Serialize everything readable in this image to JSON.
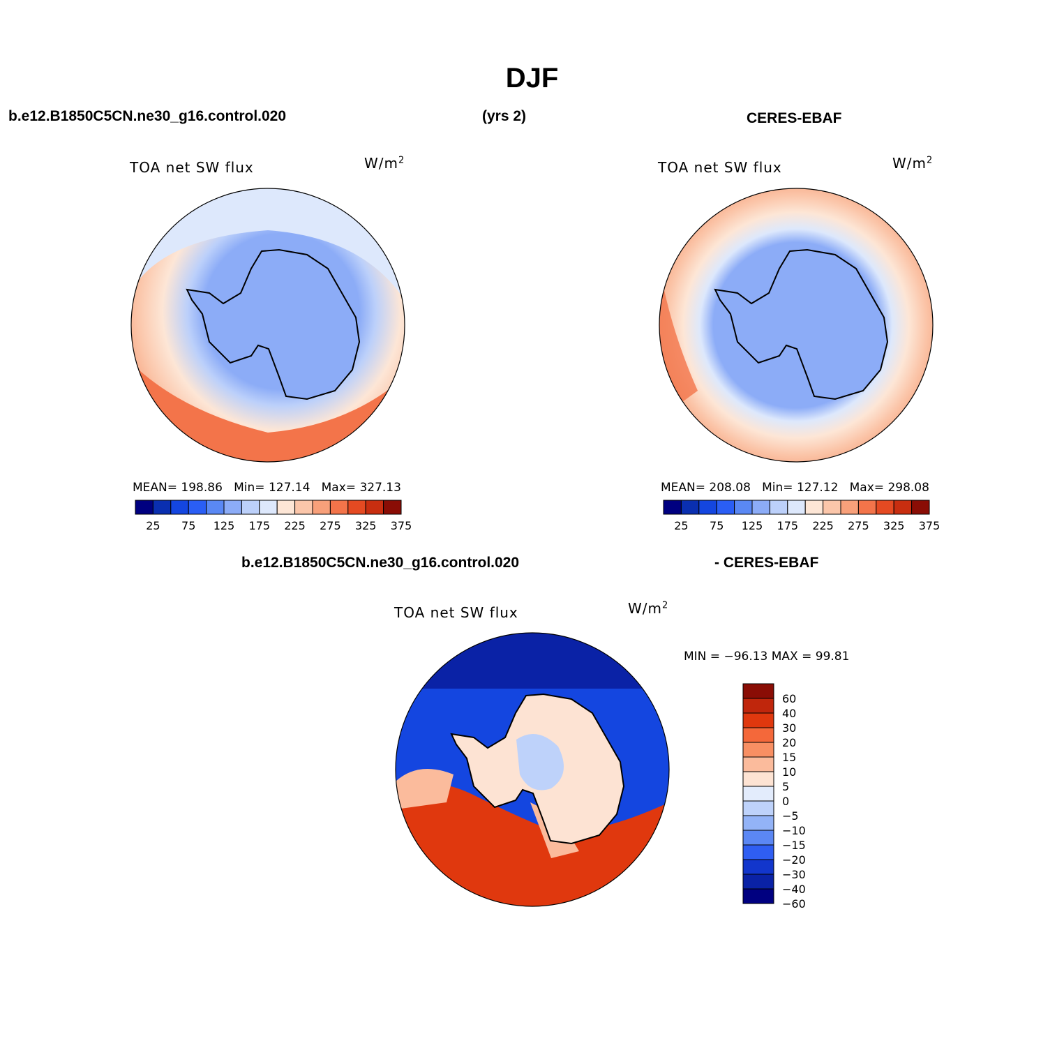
{
  "title": "DJF",
  "header": {
    "case_name": "b.e12.B1850C5CN.ne30_g16.control.020",
    "years": "(yrs 2)",
    "obs_name": "CERES-EBAF"
  },
  "diff_header": {
    "case_name": "b.e12.B1850C5CN.ne30_g16.control.020",
    "obs_name": "- CERES-EBAF"
  },
  "panels": {
    "model": {
      "variable": "TOA  net  SW  flux",
      "units": "W/m",
      "units_sup": "2",
      "stats": {
        "mean_label": "MEAN=",
        "mean": "198.86",
        "min_label": "Min=",
        "min": "127.14",
        "max_label": "Max=",
        "max": "327.13"
      }
    },
    "obs": {
      "variable": "TOA  net  SW  flux",
      "units": "W/m",
      "units_sup": "2",
      "stats": {
        "mean_label": "MEAN=",
        "mean": "208.08",
        "min_label": "Min=",
        "min": "127.12",
        "max_label": "Max=",
        "max": "298.08"
      }
    },
    "diff": {
      "variable": "TOA  net  SW  flux",
      "units": "W/m",
      "units_sup": "2",
      "stats_text": "MIN = −96.13 MAX =   99.81"
    }
  },
  "colorbar_abs": {
    "colors": [
      "#000080",
      "#0a2fb0",
      "#1446e0",
      "#2a5ef5",
      "#5a88f4",
      "#8cacf7",
      "#bcd0fa",
      "#dde8fc",
      "#fde6d6",
      "#fbc6aa",
      "#f8a07a",
      "#f3744a",
      "#e54a22",
      "#c82e10",
      "#8a0d05"
    ],
    "tick_labels": [
      "25",
      "75",
      "125",
      "175",
      "225",
      "275",
      "325",
      "375"
    ]
  },
  "colorbar_diff": {
    "colors": [
      "#8a0d05",
      "#c0260c",
      "#e0380e",
      "#f4683a",
      "#f88f63",
      "#fbbb9c",
      "#fde3d3",
      "#e3ecfc",
      "#bed2fa",
      "#93b3f7",
      "#5b87f4",
      "#2f5ef2",
      "#1236cc",
      "#0a22a6",
      "#000080"
    ],
    "tick_labels": [
      "60",
      "40",
      "30",
      "20",
      "15",
      "10",
      "5",
      "0",
      "−5",
      "−10",
      "−15",
      "−20",
      "−30",
      "−40",
      "−60"
    ]
  }
}
